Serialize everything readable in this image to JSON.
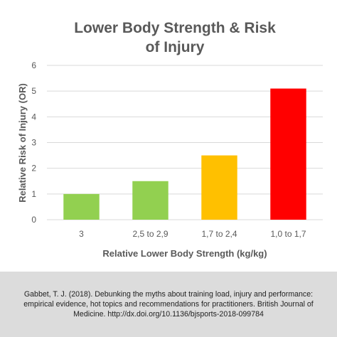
{
  "chart_data": {
    "type": "bar",
    "title": "Lower Body Strength & Risk of Injury",
    "xlabel": "Relative Lower Body Strength (kg/kg)",
    "ylabel": "Relative Risk of Injury (OR)",
    "categories": [
      "3",
      "2,5 to 2,9",
      "1,7 to 2,4",
      "1,0 to 1,7"
    ],
    "values": [
      1.0,
      1.5,
      2.5,
      5.1
    ],
    "bar_colors": [
      "#92d050",
      "#92d050",
      "#ffc000",
      "#ff0000"
    ],
    "ylim": [
      0,
      6
    ],
    "yticks": [
      0,
      1,
      2,
      3,
      4,
      5,
      6
    ],
    "grid": true,
    "legend": "none"
  },
  "citation": "Gabbet, T. J. (2018). Debunking the myths about training load, injury and performance: empirical evidence, hot topics and recommendations for practitioners. British Journal of Medicine. http://dx.doi.org/10.1136/bjsports-2018-099784",
  "colors": {
    "grid": "#d9d9d9",
    "text": "#595959",
    "footer_bg": "#dcdcdc"
  }
}
